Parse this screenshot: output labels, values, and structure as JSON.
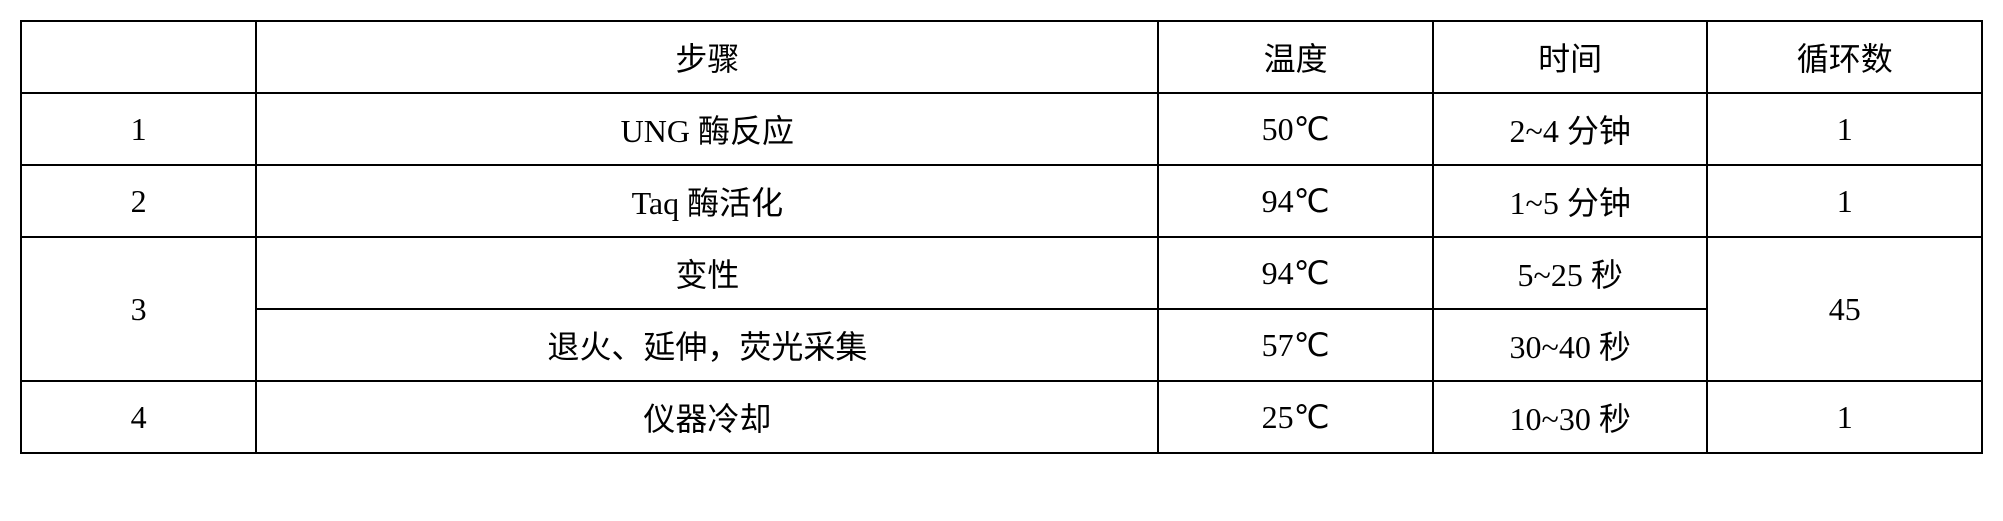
{
  "table": {
    "headers": {
      "num": "",
      "step": "步骤",
      "temp": "温度",
      "time": "时间",
      "cycle": "循环数"
    },
    "rows": [
      {
        "num": "1",
        "step": "UNG 酶反应",
        "temp": "50℃",
        "time": "2~4 分钟",
        "cycle": "1"
      },
      {
        "num": "2",
        "step": "Taq 酶活化",
        "temp": "94℃",
        "time": "1~5 分钟",
        "cycle": "1"
      },
      {
        "num": "3",
        "step": "变性",
        "temp": "94℃",
        "time": "5~25 秒",
        "cycle": "45"
      },
      {
        "num": "",
        "step": "退火、延伸，荧光采集",
        "temp": "57℃",
        "time": "30~40 秒",
        "cycle": ""
      },
      {
        "num": "4",
        "step": "仪器冷却",
        "temp": "25℃",
        "time": "10~30 秒",
        "cycle": "1"
      }
    ]
  }
}
